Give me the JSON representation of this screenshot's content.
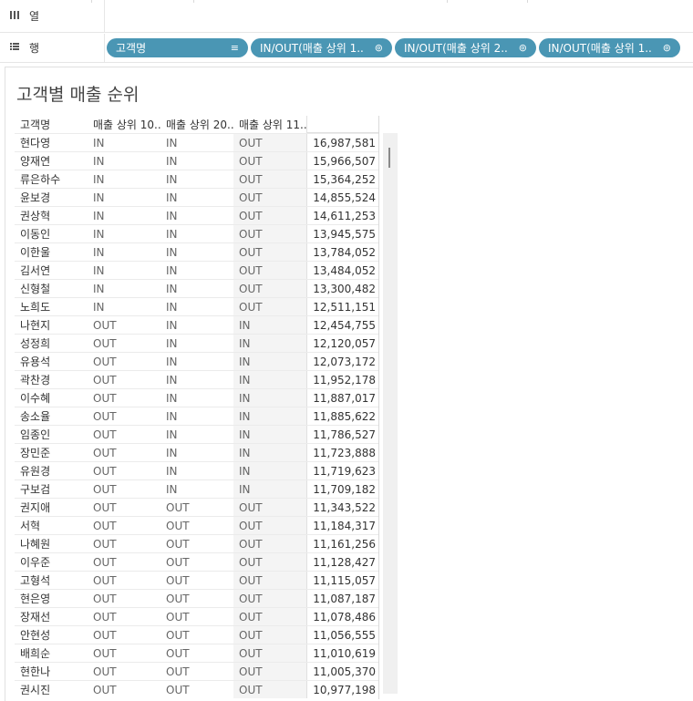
{
  "shelves": {
    "columns": {
      "label": "열",
      "icon": "columns-icon"
    },
    "rows": {
      "label": "행",
      "icon": "rows-icon",
      "pills": [
        {
          "label": "고객명",
          "icon": "sort-icon",
          "glyph": "≡"
        },
        {
          "label": "IN/OUT(매출 상위 1..",
          "icon": "set-icon",
          "glyph": "⊚"
        },
        {
          "label": "IN/OUT(매출 상위 2..",
          "icon": "set-icon",
          "glyph": "⊚"
        },
        {
          "label": "IN/OUT(매출 상위 1..",
          "icon": "set-icon",
          "glyph": "⊚"
        }
      ]
    }
  },
  "view": {
    "title": "고객별 매출 순위",
    "headers": [
      "고객명",
      "매출 상위 10..",
      "매출 상위 20..",
      "매출 상위 11.."
    ],
    "rows": [
      [
        "현다영",
        "IN",
        "IN",
        "OUT",
        "16,987,581"
      ],
      [
        "양재연",
        "IN",
        "IN",
        "OUT",
        "15,966,507"
      ],
      [
        "류은하수",
        "IN",
        "IN",
        "OUT",
        "15,364,252"
      ],
      [
        "윤보경",
        "IN",
        "IN",
        "OUT",
        "14,855,524"
      ],
      [
        "권상혁",
        "IN",
        "IN",
        "OUT",
        "14,611,253"
      ],
      [
        "이동인",
        "IN",
        "IN",
        "OUT",
        "13,945,575"
      ],
      [
        "이한울",
        "IN",
        "IN",
        "OUT",
        "13,784,052"
      ],
      [
        "김서연",
        "IN",
        "IN",
        "OUT",
        "13,484,052"
      ],
      [
        "신형철",
        "IN",
        "IN",
        "OUT",
        "13,300,482"
      ],
      [
        "노희도",
        "IN",
        "IN",
        "OUT",
        "12,511,151"
      ],
      [
        "나현지",
        "OUT",
        "IN",
        "IN",
        "12,454,755"
      ],
      [
        "성정희",
        "OUT",
        "IN",
        "IN",
        "12,120,057"
      ],
      [
        "유용석",
        "OUT",
        "IN",
        "IN",
        "12,073,172"
      ],
      [
        "곽찬경",
        "OUT",
        "IN",
        "IN",
        "11,952,178"
      ],
      [
        "이수혜",
        "OUT",
        "IN",
        "IN",
        "11,887,017"
      ],
      [
        "송소율",
        "OUT",
        "IN",
        "IN",
        "11,885,622"
      ],
      [
        "임종인",
        "OUT",
        "IN",
        "IN",
        "11,786,527"
      ],
      [
        "장민준",
        "OUT",
        "IN",
        "IN",
        "11,723,888"
      ],
      [
        "유원경",
        "OUT",
        "IN",
        "IN",
        "11,719,623"
      ],
      [
        "구보검",
        "OUT",
        "IN",
        "IN",
        "11,709,182"
      ],
      [
        "권지애",
        "OUT",
        "OUT",
        "OUT",
        "11,343,522"
      ],
      [
        "서혁",
        "OUT",
        "OUT",
        "OUT",
        "11,184,317"
      ],
      [
        "나혜원",
        "OUT",
        "OUT",
        "OUT",
        "11,161,256"
      ],
      [
        "이우준",
        "OUT",
        "OUT",
        "OUT",
        "11,128,427"
      ],
      [
        "고형석",
        "OUT",
        "OUT",
        "OUT",
        "11,115,057"
      ],
      [
        "현은영",
        "OUT",
        "OUT",
        "OUT",
        "11,087,187"
      ],
      [
        "장재선",
        "OUT",
        "OUT",
        "OUT",
        "11,078,486"
      ],
      [
        "안현성",
        "OUT",
        "OUT",
        "OUT",
        "11,056,555"
      ],
      [
        "배희순",
        "OUT",
        "OUT",
        "OUT",
        "11,010,619"
      ],
      [
        "현한나",
        "OUT",
        "OUT",
        "OUT",
        "11,005,370"
      ],
      [
        "권시진",
        "OUT",
        "OUT",
        "OUT",
        "10,977,198"
      ]
    ]
  },
  "colors": {
    "pill": "#4a96b4",
    "shade": "#f4f4f4"
  }
}
